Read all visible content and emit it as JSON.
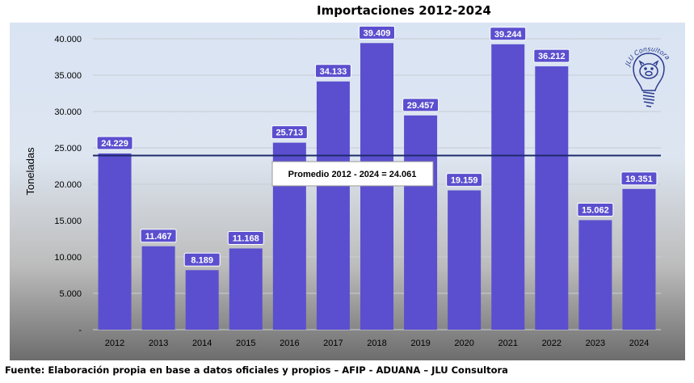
{
  "chart_data": {
    "type": "bar",
    "title": "Importaciones 2012-2024",
    "ylabel": "Toneladas",
    "xlabel": "",
    "categories": [
      "2012",
      "2013",
      "2014",
      "2015",
      "2016",
      "2017",
      "2018",
      "2019",
      "2020",
      "2021",
      "2022",
      "2023",
      "2024"
    ],
    "values": [
      24229,
      11467,
      8189,
      11168,
      25713,
      34133,
      39409,
      29457,
      19159,
      39244,
      36212,
      15062,
      19351
    ],
    "value_labels": [
      "24.229",
      "11.467",
      "8.189",
      "11.168",
      "25.713",
      "34.133",
      "39.409",
      "29.457",
      "19.159",
      "39.244",
      "36.212",
      "15.062",
      "19.351"
    ],
    "ylim": [
      0,
      40000
    ],
    "yticks": [
      0,
      5000,
      10000,
      15000,
      20000,
      25000,
      30000,
      35000,
      40000
    ],
    "ytick_labels": [
      "-",
      "5.000",
      "10.000",
      "15.000",
      "20.000",
      "25.000",
      "30.000",
      "35.000",
      "40.000"
    ],
    "grid": true,
    "bar_color": "#5b4fcf",
    "average": {
      "value": 24061,
      "label": "Promedio 2012 - 2024 = 24.061",
      "color": "#1f2a6b"
    }
  },
  "logo": {
    "text": "JLU Consultora",
    "icon": "pig-lightbulb-icon",
    "color": "#2b3a8f"
  },
  "footer": {
    "source": "Fuente: Elaboración propia en base a datos oficiales y propios – AFIP - ADUANA – JLU Consultora"
  }
}
